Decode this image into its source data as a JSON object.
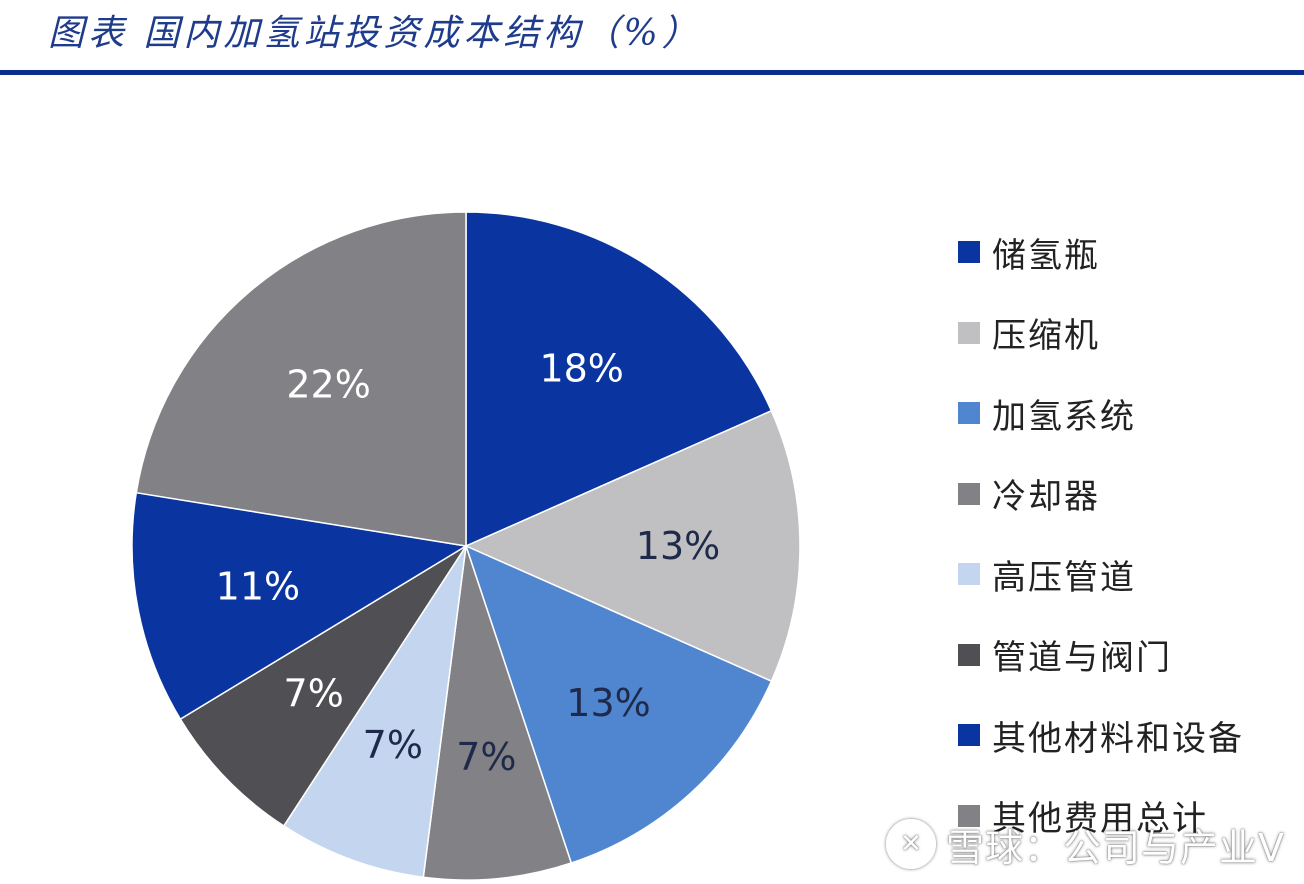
{
  "title": "图表 国内加氢站投资成本结构（%）",
  "colors": {
    "title": "#1f3c8c",
    "rule": "#0b2d8c",
    "label_light": "#ffffff",
    "label_dark": "#1f2a4a"
  },
  "chart_data": {
    "type": "pie",
    "start_angle_deg": 0,
    "direction": "clockwise",
    "unit": "%",
    "title": "",
    "slices": [
      {
        "name": "储氢瓶",
        "value": 18,
        "label": "18%",
        "color": "#0a35a0",
        "label_color": "#ffffff"
      },
      {
        "name": "压缩机",
        "value": 13,
        "label": "13%",
        "color": "#c0c0c3",
        "label_color": "#1f2a4a"
      },
      {
        "name": "加氢系统",
        "value": 13,
        "label": "13%",
        "color": "#4f86cf",
        "label_color": "#1f2a4a"
      },
      {
        "name": "冷却器",
        "value": 7,
        "label": "7%",
        "color": "#828286",
        "label_color": "#1f2a4a"
      },
      {
        "name": "高压管道",
        "value": 7,
        "label": "7%",
        "color": "#c3d5ef",
        "label_color": "#1f2a4a"
      },
      {
        "name": "管道与阀门",
        "value": 7,
        "label": "7%",
        "color": "#505054",
        "label_color": "#ffffff"
      },
      {
        "name": "其他材料和设备",
        "value": 11,
        "label": "11%",
        "color": "#0a35a0",
        "label_color": "#ffffff"
      },
      {
        "name": "其他费用总计",
        "value": 22,
        "label": "22%",
        "color": "#828286",
        "label_color": "#ffffff"
      }
    ],
    "legend_position": "right"
  },
  "watermark": {
    "logo": "✕",
    "text": "雪球：公司与产业V"
  }
}
